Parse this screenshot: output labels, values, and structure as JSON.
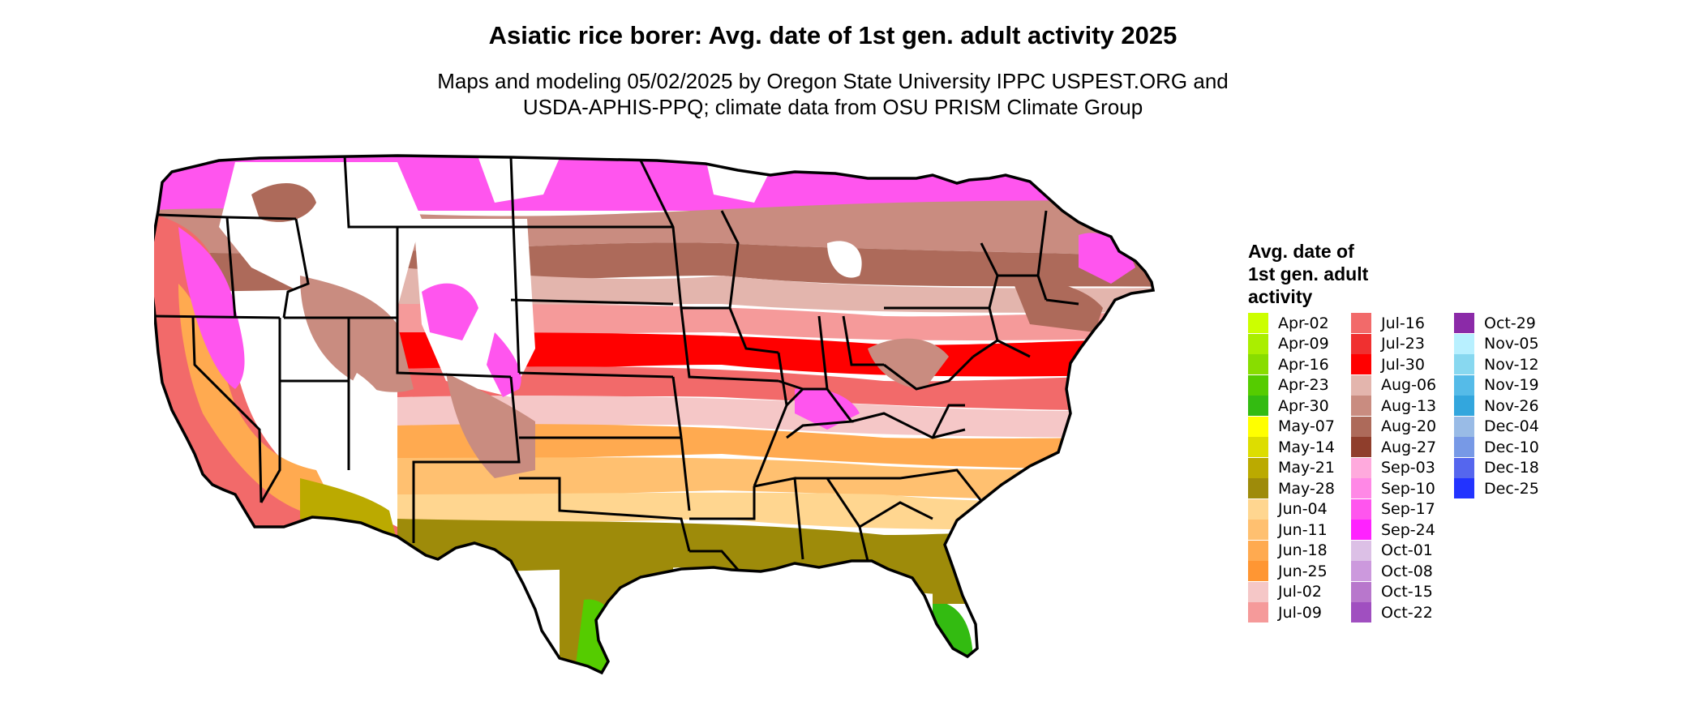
{
  "title": "Asiatic rice borer: Avg. date of 1st gen. adult activity 2025",
  "subtitle_lines": [
    "Maps and modeling 05/02/2025 by Oregon State University IPPC USPEST.ORG and",
    "USDA-APHIS-PPQ; climate data from OSU PRISM Climate Group"
  ],
  "legend": {
    "title_lines": [
      "Avg. date of",
      "1st gen. adult",
      "activity"
    ],
    "items": [
      {
        "label": "Apr-02",
        "color": "#ccff00"
      },
      {
        "label": "Apr-09",
        "color": "#aaee00"
      },
      {
        "label": "Apr-16",
        "color": "#88dd00"
      },
      {
        "label": "Apr-23",
        "color": "#55cc00"
      },
      {
        "label": "Apr-30",
        "color": "#33bb11"
      },
      {
        "label": "May-07",
        "color": "#ffff00"
      },
      {
        "label": "May-14",
        "color": "#dddd00"
      },
      {
        "label": "May-21",
        "color": "#bbaa00"
      },
      {
        "label": "May-28",
        "color": "#9e8b0a"
      },
      {
        "label": "Jun-04",
        "color": "#ffd690"
      },
      {
        "label": "Jun-11",
        "color": "#ffc070"
      },
      {
        "label": "Jun-18",
        "color": "#ffaa50"
      },
      {
        "label": "Jun-25",
        "color": "#ff9633"
      },
      {
        "label": "Jul-02",
        "color": "#f5c7c7"
      },
      {
        "label": "Jul-09",
        "color": "#f59a9a"
      },
      {
        "label": "Jul-16",
        "color": "#f26a6a"
      },
      {
        "label": "Jul-23",
        "color": "#f03030"
      },
      {
        "label": "Jul-30",
        "color": "#ff0000"
      },
      {
        "label": "Aug-06",
        "color": "#e3b5ad"
      },
      {
        "label": "Aug-13",
        "color": "#c98c80"
      },
      {
        "label": "Aug-20",
        "color": "#ad6a5a"
      },
      {
        "label": "Aug-27",
        "color": "#8f3e2c"
      },
      {
        "label": "Sep-03",
        "color": "#ffaadd"
      },
      {
        "label": "Sep-10",
        "color": "#ff88e6"
      },
      {
        "label": "Sep-17",
        "color": "#ff55ee"
      },
      {
        "label": "Sep-24",
        "color": "#ff22ff"
      },
      {
        "label": "Oct-01",
        "color": "#dcc0e6"
      },
      {
        "label": "Oct-08",
        "color": "#cc99dd"
      },
      {
        "label": "Oct-15",
        "color": "#b877cc"
      },
      {
        "label": "Oct-22",
        "color": "#a04fc0"
      },
      {
        "label": "Oct-29",
        "color": "#8b2aa8"
      },
      {
        "label": "Nov-05",
        "color": "#b8f0ff"
      },
      {
        "label": "Nov-12",
        "color": "#88d8f0"
      },
      {
        "label": "Nov-19",
        "color": "#55bbe8"
      },
      {
        "label": "Nov-26",
        "color": "#33a6dd"
      },
      {
        "label": "Dec-04",
        "color": "#99bbe6"
      },
      {
        "label": "Dec-10",
        "color": "#7799e6"
      },
      {
        "label": "Dec-18",
        "color": "#5566ee"
      },
      {
        "label": "Dec-25",
        "color": "#2233ff"
      }
    ]
  }
}
